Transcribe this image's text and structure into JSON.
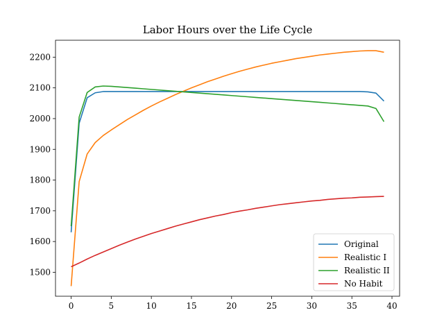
{
  "chart_data": {
    "type": "line",
    "title": "Labor Hours over the Life Cycle",
    "xlabel": "",
    "ylabel": "",
    "xlim": [
      -1.95,
      40.95
    ],
    "ylim": [
      1422,
      2255
    ],
    "xticks": [
      0,
      5,
      10,
      15,
      20,
      25,
      30,
      35,
      40
    ],
    "yticks": [
      1500,
      1600,
      1700,
      1800,
      1900,
      2000,
      2100,
      2200
    ],
    "grid": false,
    "legend_position": "lower-right",
    "x": [
      0,
      1,
      2,
      3,
      4,
      5,
      6,
      7,
      8,
      9,
      10,
      11,
      12,
      13,
      14,
      15,
      16,
      17,
      18,
      19,
      20,
      21,
      22,
      23,
      24,
      25,
      26,
      27,
      28,
      29,
      30,
      31,
      32,
      33,
      34,
      35,
      36,
      37,
      38,
      39
    ],
    "series": [
      {
        "name": "Original",
        "color": "#1f77b4",
        "values": [
          1630,
          1985,
          2068,
          2084,
          2088,
          2088,
          2088,
          2088,
          2088,
          2088,
          2088,
          2088,
          2088,
          2088,
          2088,
          2088,
          2088,
          2088,
          2088,
          2088,
          2088,
          2088,
          2088,
          2088,
          2088,
          2088,
          2088,
          2088,
          2088,
          2088,
          2088,
          2088,
          2088,
          2088,
          2088,
          2088,
          2088,
          2087,
          2083,
          2057
        ]
      },
      {
        "name": "Realistic I",
        "color": "#ff7f0e",
        "values": [
          1455,
          1795,
          1885,
          1922,
          1945,
          1963,
          1980,
          1997,
          2012,
          2027,
          2041,
          2054,
          2066,
          2078,
          2089,
          2100,
          2110,
          2120,
          2129,
          2138,
          2146,
          2154,
          2161,
          2168,
          2174,
          2180,
          2185,
          2190,
          2195,
          2199,
          2203,
          2207,
          2210,
          2213,
          2216,
          2218,
          2220,
          2221,
          2221,
          2216
        ]
      },
      {
        "name": "Realistic II",
        "color": "#2ca02c",
        "values": [
          1650,
          2005,
          2085,
          2103,
          2106,
          2105,
          2103,
          2101,
          2099,
          2097,
          2095,
          2093,
          2091,
          2089,
          2087,
          2085,
          2083,
          2081,
          2079,
          2077,
          2075,
          2073,
          2071,
          2069,
          2067,
          2065,
          2063,
          2061,
          2059,
          2057,
          2055,
          2053,
          2051,
          2049,
          2047,
          2045,
          2043,
          2041,
          2033,
          1990
        ]
      },
      {
        "name": "No Habit",
        "color": "#d62728",
        "values": [
          1518,
          1530,
          1543,
          1555,
          1566,
          1577,
          1588,
          1598,
          1608,
          1617,
          1626,
          1634,
          1642,
          1650,
          1657,
          1664,
          1671,
          1677,
          1683,
          1688,
          1694,
          1699,
          1703,
          1708,
          1712,
          1716,
          1720,
          1723,
          1726,
          1729,
          1732,
          1734,
          1737,
          1739,
          1741,
          1742,
          1744,
          1745,
          1746,
          1747
        ]
      }
    ]
  }
}
